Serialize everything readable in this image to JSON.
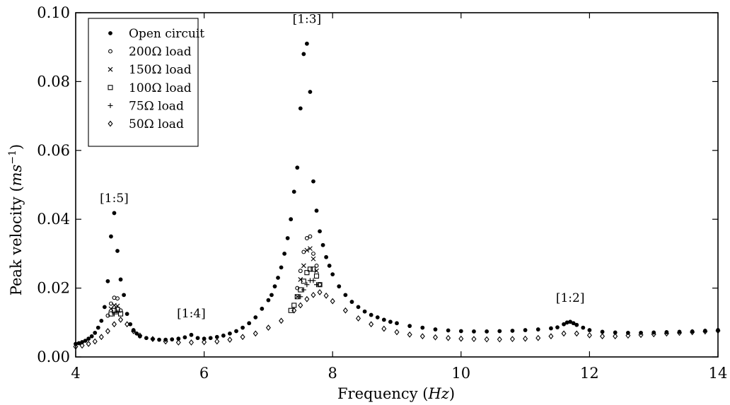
{
  "chart_data": {
    "type": "scatter",
    "title": "",
    "xlabel": "Frequency",
    "xlabel_unit": "Hz",
    "ylabel": "Peak velocity",
    "ylabel_unit_base": "ms",
    "ylabel_unit_exp": "−1",
    "xlim": [
      4,
      14
    ],
    "ylim": [
      0,
      0.1
    ],
    "x_ticks": [
      4,
      6,
      8,
      10,
      12,
      14
    ],
    "x_tick_labels": [
      "4",
      "6",
      "8",
      "10",
      "12",
      "14"
    ],
    "y_ticks": [
      0,
      0.02,
      0.04,
      0.06,
      0.08,
      0.1
    ],
    "y_tick_labels": [
      "0.00",
      "0.02",
      "0.04",
      "0.06",
      "0.08",
      "0.10"
    ],
    "grid": false,
    "legend_position": "top-left",
    "annotations": [
      {
        "text": "[1:5]",
        "x": 4.6,
        "y": 0.045
      },
      {
        "text": "[1:4]",
        "x": 5.8,
        "y": 0.0115
      },
      {
        "text": "[1:3]",
        "x": 7.6,
        "y": 0.097
      },
      {
        "text": "[1:2]",
        "x": 11.7,
        "y": 0.016
      }
    ],
    "series": [
      {
        "name": "Open circuit",
        "marker": "filled-circle",
        "x": [
          4.0,
          4.05,
          4.1,
          4.15,
          4.2,
          4.25,
          4.3,
          4.35,
          4.4,
          4.45,
          4.5,
          4.55,
          4.6,
          4.65,
          4.7,
          4.75,
          4.8,
          4.85,
          4.9,
          4.95,
          5.0,
          5.1,
          5.2,
          5.3,
          5.4,
          5.5,
          5.6,
          5.7,
          5.8,
          5.9,
          6.0,
          6.1,
          6.2,
          6.3,
          6.4,
          6.5,
          6.6,
          6.7,
          6.8,
          6.9,
          7.0,
          7.05,
          7.1,
          7.15,
          7.2,
          7.25,
          7.3,
          7.35,
          7.4,
          7.45,
          7.5,
          7.55,
          7.6,
          7.65,
          7.7,
          7.75,
          7.8,
          7.85,
          7.9,
          7.95,
          8.0,
          8.1,
          8.2,
          8.3,
          8.4,
          8.5,
          8.6,
          8.7,
          8.8,
          8.9,
          9.0,
          9.2,
          9.4,
          9.6,
          9.8,
          10.0,
          10.2,
          10.4,
          10.6,
          10.8,
          11.0,
          11.2,
          11.4,
          11.5,
          11.6,
          11.65,
          11.7,
          11.75,
          11.8,
          11.9,
          12.0,
          12.2,
          12.4,
          12.6,
          12.8,
          13.0,
          13.2,
          13.4,
          13.6,
          13.8,
          14.0
        ],
        "y": [
          0.0038,
          0.004,
          0.0043,
          0.0047,
          0.0053,
          0.006,
          0.007,
          0.0085,
          0.0105,
          0.0145,
          0.022,
          0.035,
          0.0418,
          0.0308,
          0.0225,
          0.018,
          0.0125,
          0.0095,
          0.0078,
          0.0068,
          0.006,
          0.0055,
          0.0052,
          0.005,
          0.005,
          0.0051,
          0.0053,
          0.0057,
          0.0064,
          0.0055,
          0.0053,
          0.0055,
          0.0058,
          0.0062,
          0.0068,
          0.0075,
          0.0085,
          0.0098,
          0.0115,
          0.014,
          0.0165,
          0.018,
          0.0205,
          0.023,
          0.026,
          0.03,
          0.0345,
          0.04,
          0.048,
          0.055,
          0.0722,
          0.088,
          0.091,
          0.077,
          0.051,
          0.0425,
          0.0365,
          0.0325,
          0.029,
          0.0265,
          0.024,
          0.0205,
          0.018,
          0.016,
          0.0145,
          0.0132,
          0.0122,
          0.0115,
          0.0108,
          0.0102,
          0.0098,
          0.009,
          0.0085,
          0.008,
          0.0077,
          0.0075,
          0.0074,
          0.0074,
          0.0075,
          0.0076,
          0.0078,
          0.008,
          0.0083,
          0.0086,
          0.0095,
          0.01,
          0.0102,
          0.0098,
          0.0093,
          0.0085,
          0.0078,
          0.0073,
          0.0071,
          0.007,
          0.007,
          0.0071,
          0.0072,
          0.0073,
          0.0074,
          0.0076,
          0.0078
        ]
      },
      {
        "name": "200Ω load",
        "marker": "open-circle",
        "x": [
          4.5,
          4.55,
          4.6,
          4.65,
          4.7,
          7.45,
          7.5,
          7.55,
          7.6,
          7.65,
          7.7,
          7.75,
          7.8
        ],
        "y": [
          0.012,
          0.0155,
          0.0172,
          0.017,
          0.0135,
          0.02,
          0.025,
          0.0305,
          0.0345,
          0.035,
          0.03,
          0.0265,
          0.021
        ]
      },
      {
        "name": "150Ω load",
        "marker": "x",
        "x": [
          4.55,
          4.6,
          4.65,
          7.45,
          7.5,
          7.55,
          7.6,
          7.65,
          7.7,
          7.75
        ],
        "y": [
          0.014,
          0.015,
          0.0148,
          0.0175,
          0.0225,
          0.0265,
          0.031,
          0.0315,
          0.0285,
          0.025
        ]
      },
      {
        "name": "100Ω load",
        "marker": "square",
        "x": [
          4.55,
          4.6,
          4.65,
          4.7,
          7.35,
          7.4,
          7.45,
          7.5,
          7.55,
          7.6,
          7.65,
          7.7,
          7.75,
          7.8
        ],
        "y": [
          0.0125,
          0.0135,
          0.0138,
          0.0125,
          0.0135,
          0.015,
          0.0175,
          0.0195,
          0.022,
          0.0245,
          0.0255,
          0.0255,
          0.0235,
          0.021
        ]
      },
      {
        "name": "75Ω load",
        "marker": "plus",
        "x": [
          4.6,
          4.65,
          7.5,
          7.55,
          7.6,
          7.65,
          7.7,
          7.75
        ],
        "y": [
          0.0125,
          0.013,
          0.0175,
          0.0195,
          0.021,
          0.0222,
          0.0222,
          0.021
        ]
      },
      {
        "name": "50Ω load",
        "marker": "diamond",
        "x": [
          4.0,
          4.1,
          4.2,
          4.3,
          4.4,
          4.5,
          4.6,
          4.7,
          4.8,
          4.9,
          5.0,
          5.2,
          5.4,
          5.6,
          5.8,
          6.0,
          6.2,
          6.4,
          6.6,
          6.8,
          7.0,
          7.2,
          7.4,
          7.5,
          7.6,
          7.7,
          7.8,
          7.9,
          8.0,
          8.2,
          8.4,
          8.6,
          8.8,
          9.0,
          9.2,
          9.4,
          9.6,
          9.8,
          10.0,
          10.2,
          10.4,
          10.6,
          10.8,
          11.0,
          11.2,
          11.4,
          11.6,
          11.8,
          12.0,
          12.2,
          12.4,
          12.6,
          12.8,
          13.0,
          13.2,
          13.4,
          13.6,
          13.8,
          14.0
        ],
        "y": [
          0.003,
          0.0033,
          0.0038,
          0.0045,
          0.0058,
          0.0075,
          0.0095,
          0.0108,
          0.0095,
          0.0075,
          0.0062,
          0.0052,
          0.0045,
          0.0042,
          0.0042,
          0.0043,
          0.0045,
          0.005,
          0.0058,
          0.0068,
          0.0085,
          0.0105,
          0.0135,
          0.015,
          0.0168,
          0.018,
          0.0188,
          0.0178,
          0.0162,
          0.0135,
          0.0112,
          0.0095,
          0.0082,
          0.0072,
          0.0065,
          0.006,
          0.0057,
          0.0055,
          0.0053,
          0.0052,
          0.0051,
          0.0051,
          0.0052,
          0.0053,
          0.0055,
          0.006,
          0.0068,
          0.0068,
          0.0063,
          0.006,
          0.006,
          0.0062,
          0.0064,
          0.0066,
          0.0068,
          0.007,
          0.0072,
          0.0074,
          0.0076
        ]
      }
    ]
  }
}
